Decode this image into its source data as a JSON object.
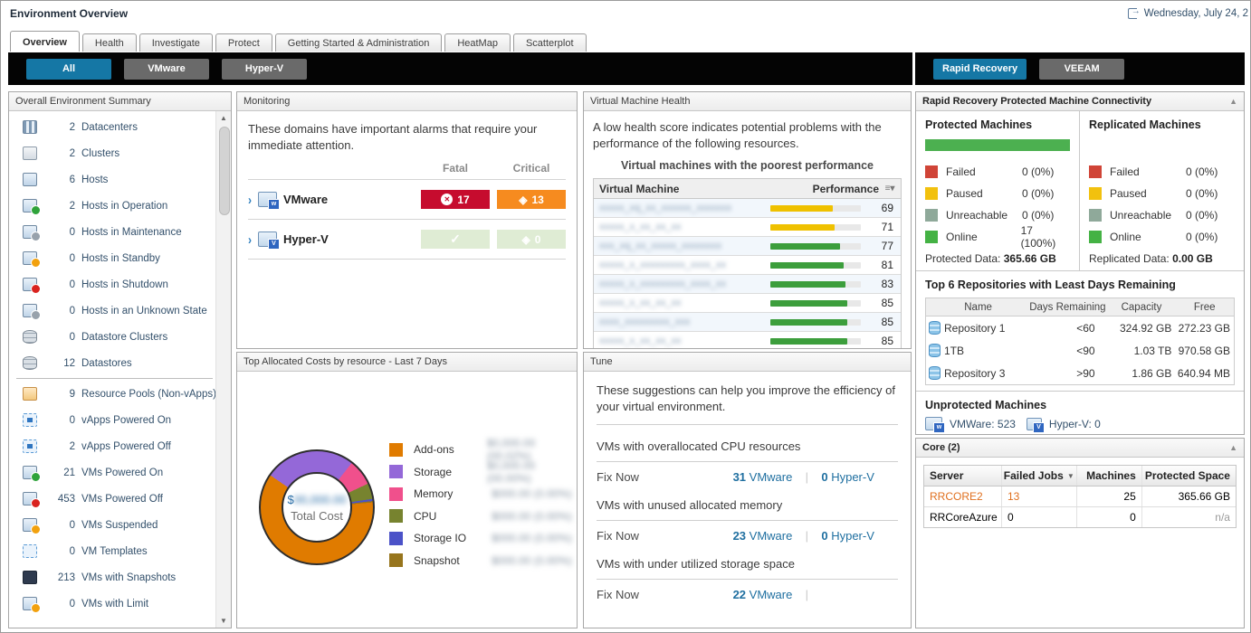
{
  "header": {
    "title": "Environment Overview",
    "date": "Wednesday, July 24, 2",
    "tabs": [
      "Overview",
      "Health",
      "Investigate",
      "Protect",
      "Getting Started & Administration",
      "HeatMap",
      "Scatterplot"
    ],
    "active_tab": "Overview"
  },
  "toolbar": {
    "left": [
      {
        "label": "All",
        "active": true
      },
      {
        "label": "VMware",
        "active": false
      },
      {
        "label": "Hyper-V",
        "active": false
      }
    ],
    "right": [
      {
        "label": "Rapid Recovery",
        "active": true
      },
      {
        "label": "VEEAM",
        "active": false
      }
    ],
    "active_color": "#1577A5",
    "inactive_color": "#6A6A6A"
  },
  "summary": {
    "title": "Overall Environment Summary",
    "items": [
      {
        "count": "2",
        "label": "Datacenters",
        "icon": "datacenter",
        "badge": null
      },
      {
        "count": "2",
        "label": "Clusters",
        "icon": "cluster",
        "badge": null
      },
      {
        "count": "6",
        "label": "Hosts",
        "icon": "host",
        "badge": null
      },
      {
        "count": "2",
        "label": "Hosts in Operation",
        "icon": "host",
        "badge": "green"
      },
      {
        "count": "0",
        "label": "Hosts in Maintenance",
        "icon": "host",
        "badge": "gray"
      },
      {
        "count": "0",
        "label": "Hosts in Standby",
        "icon": "host",
        "badge": "orange"
      },
      {
        "count": "0",
        "label": "Hosts in Shutdown",
        "icon": "host",
        "badge": "red"
      },
      {
        "count": "0",
        "label": "Hosts in an Unknown State",
        "icon": "host",
        "badge": "gray"
      },
      {
        "count": "0",
        "label": "Datastore Clusters",
        "icon": "datastore",
        "badge": null
      },
      {
        "count": "12",
        "label": "Datastores",
        "icon": "datastore",
        "badge": null,
        "divider_after": true
      },
      {
        "count": "9",
        "label": "Resource Pools (Non-vApps)",
        "icon": "pool",
        "badge": null
      },
      {
        "count": "0",
        "label": "vApps Powered On",
        "icon": "vapp",
        "badge": null
      },
      {
        "count": "2",
        "label": "vApps Powered Off",
        "icon": "vapp",
        "badge": null
      },
      {
        "count": "21",
        "label": "VMs Powered On",
        "icon": "vm",
        "badge": "green"
      },
      {
        "count": "453",
        "label": "VMs Powered Off",
        "icon": "vm",
        "badge": "red"
      },
      {
        "count": "0",
        "label": "VMs Suspended",
        "icon": "vm",
        "badge": "orange"
      },
      {
        "count": "0",
        "label": "VM Templates",
        "icon": "template",
        "badge": null
      },
      {
        "count": "213",
        "label": "VMs with Snapshots",
        "icon": "snapshot",
        "badge": null
      },
      {
        "count": "0",
        "label": "VMs with Limit",
        "icon": "vm",
        "badge": "orange"
      }
    ]
  },
  "monitoring": {
    "title": "Monitoring",
    "message": "These domains have important alarms that require your immediate attention.",
    "fatal_header": "Fatal",
    "critical_header": "Critical",
    "rows": [
      {
        "name": "VMware",
        "fatal": "17",
        "critical": "13",
        "alarmed": true
      },
      {
        "name": "Hyper-V",
        "fatal": "",
        "critical": "0",
        "alarmed": false
      }
    ],
    "fatal_color": "#C60C2E",
    "critical_color": "#F68B1F",
    "ok_color": "#DFECD4"
  },
  "vm_health": {
    "title": "Virtual Machine Health",
    "message": "A low health score indicates potential problems with the performance of the following resources.",
    "subtitle": "Virtual machines with the poorest performance",
    "col_vm": "Virtual Machine",
    "col_perf": "Performance",
    "rows": [
      {
        "name_masked": "xxxxx_xq_xx_xxxxxx_xxxxxxx",
        "score": 69,
        "bar": "yellow"
      },
      {
        "name_masked": "xxxxx_x_xx_xx_xx",
        "score": 71,
        "bar": "yellow"
      },
      {
        "name_masked": "xxx_xq_xx_xxxxx_xxxxxxxx",
        "score": 77,
        "bar": "green"
      },
      {
        "name_masked": "xxxxx_x_xxxxxxxxx_xxxx_xx",
        "score": 81,
        "bar": "green"
      },
      {
        "name_masked": "xxxxx_x_xxxxxxxxx_xxxx_xx",
        "score": 83,
        "bar": "green"
      },
      {
        "name_masked": "xxxxx_x_xx_xx_xx",
        "score": 85,
        "bar": "green"
      },
      {
        "name_masked": "xxxx_xxxxxxxxx_xxx",
        "score": 85,
        "bar": "green"
      },
      {
        "name_masked": "xxxxx_x_xx_xx_xx",
        "score": 85,
        "bar": "green"
      }
    ]
  },
  "costs": {
    "title": "Top Allocated Costs by resource - Last 7 Days",
    "total_currency": "$",
    "total_value_masked": "00,000.00",
    "total_label": "Total Cost",
    "legend": [
      {
        "label": "Add-ons",
        "color": "#E07B00",
        "value_masked": "$0,000.00 (00.02%)"
      },
      {
        "label": "Storage",
        "color": "#9468D8",
        "value_masked": "$0,000.00 (00.00%)"
      },
      {
        "label": "Memory",
        "color": "#F0508C",
        "value_masked": "$000.00 (0.00%)"
      },
      {
        "label": "CPU",
        "color": "#77832F",
        "value_masked": "$000.00 (0.00%)"
      },
      {
        "label": "Storage IO",
        "color": "#4B52C8",
        "value_masked": "$000.00 (0.00%)"
      },
      {
        "label": "Snapshot",
        "color": "#97751D",
        "value_masked": "$000.00 (0.00%)"
      }
    ],
    "donut_segments": [
      {
        "label": "Add-ons",
        "pct": 61
      },
      {
        "label": "Storage",
        "pct": 26
      },
      {
        "label": "Memory",
        "pct": 7.5
      },
      {
        "label": "CPU",
        "pct": 4.5
      },
      {
        "label": "Storage IO",
        "pct": 0.6
      },
      {
        "label": "Snapshot",
        "pct": 0.4
      }
    ]
  },
  "tune": {
    "title": "Tune",
    "message": "These suggestions can help you improve the efficiency of your virtual environment.",
    "sections": [
      {
        "heading": "VMs with overallocated CPU resources",
        "fix": "Fix Now",
        "vmware": "31",
        "vmware_label": "VMware",
        "hyperv": "0",
        "hyperv_label": "Hyper-V"
      },
      {
        "heading": "VMs with unused allocated memory",
        "fix": "Fix Now",
        "vmware": "23",
        "vmware_label": "VMware",
        "hyperv": "0",
        "hyperv_label": "Hyper-V"
      },
      {
        "heading": "VMs with under utilized storage space",
        "fix": "Fix Now",
        "vmware": "22",
        "vmware_label": "VMware",
        "hyperv": "",
        "hyperv_label": ""
      }
    ]
  },
  "rapid_recovery": {
    "title": "Rapid Recovery Protected Machine Connectivity",
    "protected": {
      "heading": "Protected Machines",
      "bar_pct": 100,
      "bar_color": "#4CB050",
      "stats": [
        {
          "label": "Failed",
          "value": "0 (0%)",
          "color": "#D04437"
        },
        {
          "label": "Paused",
          "value": "0 (0%)",
          "color": "#F2C10E"
        },
        {
          "label": "Unreachable",
          "value": "0 (0%)",
          "color": "#8FA99A"
        },
        {
          "label": "Online",
          "value": "17 (100%)",
          "color": "#44B244"
        }
      ],
      "data_label": "Protected Data:",
      "data_value": "365.66 GB"
    },
    "replicated": {
      "heading": "Replicated Machines",
      "stats": [
        {
          "label": "Failed",
          "value": "0 (0%)",
          "color": "#D04437"
        },
        {
          "label": "Paused",
          "value": "0 (0%)",
          "color": "#F2C10E"
        },
        {
          "label": "Unreachable",
          "value": "0 (0%)",
          "color": "#8FA99A"
        },
        {
          "label": "Online",
          "value": "0 (0%)",
          "color": "#44B244"
        }
      ],
      "data_label": "Replicated Data:",
      "data_value": "0.00 GB"
    },
    "repositories": {
      "title": "Top 6 Repositories with Least Days Remaining",
      "headers": [
        "Name",
        "Days Remaining",
        "Capacity",
        "Free"
      ],
      "rows": [
        {
          "name": "Repository 1",
          "days": "<60",
          "capacity": "324.92 GB",
          "free": "272.23 GB"
        },
        {
          "name": "1TB",
          "days": "<90",
          "capacity": "1.03 TB",
          "free": "970.58 GB"
        },
        {
          "name": "Repository 3",
          "days": ">90",
          "capacity": "1.86 GB",
          "free": "640.94 MB"
        }
      ]
    },
    "unprotected": {
      "title": "Unprotected Machines",
      "vmware_label": "VMWare: 523",
      "hyperv_label": "Hyper-V: 0"
    }
  },
  "core": {
    "title": "Core (2)",
    "headers": [
      "Server",
      "Failed Jobs",
      "Machines",
      "Protected Space"
    ],
    "sorted_by": "Failed Jobs",
    "rows": [
      {
        "server": "RRCORE2",
        "failed_jobs": "13",
        "machines": "25",
        "protected_space": "365.66 GB",
        "alert": true
      },
      {
        "server": "RRCoreAzure",
        "failed_jobs": "0",
        "machines": "0",
        "protected_space": "n/a",
        "alert": false
      }
    ]
  }
}
